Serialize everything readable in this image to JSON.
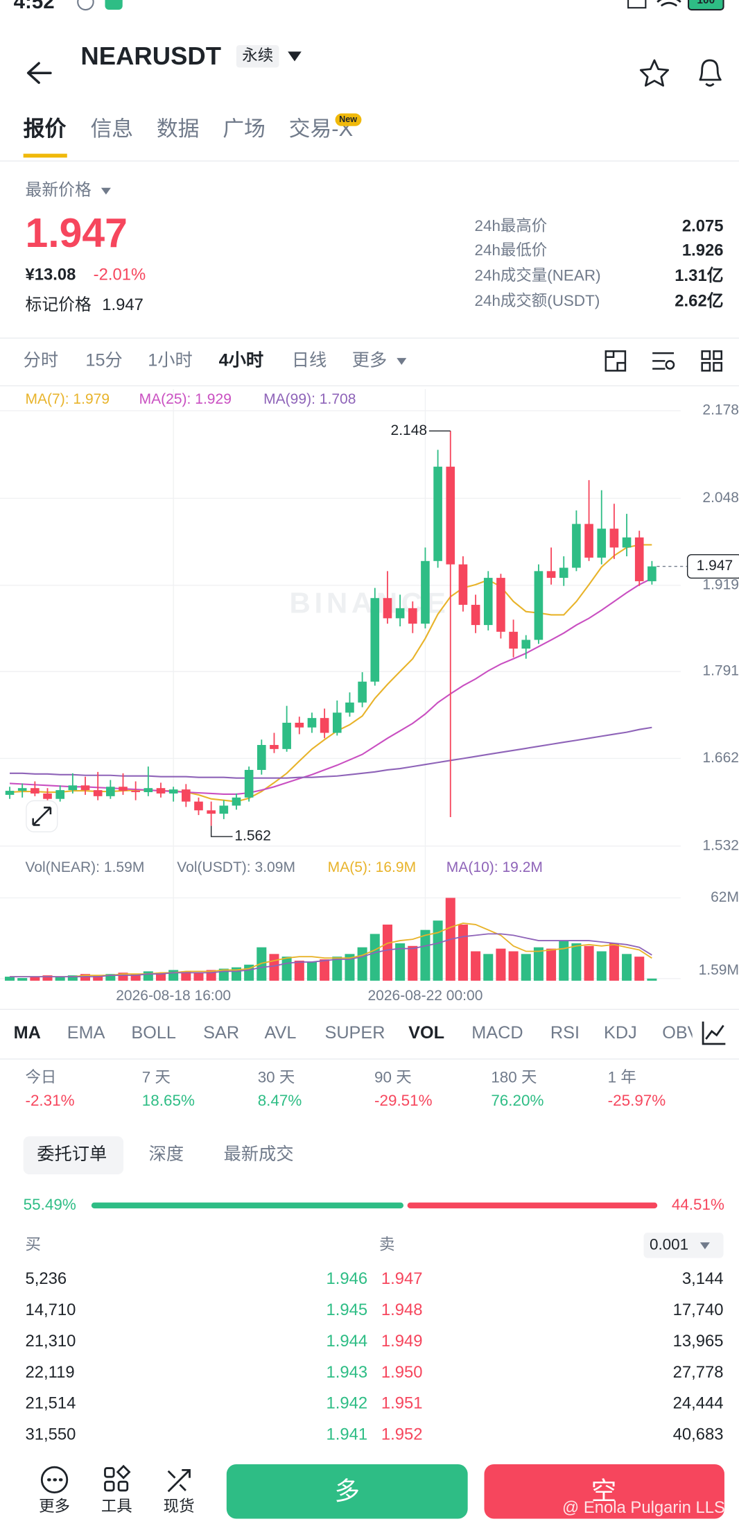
{
  "status_bar": {
    "time": "4:52",
    "battery": "100"
  },
  "header": {
    "symbol": "NEARUSDT",
    "badge": "永续"
  },
  "tabs": [
    "报价",
    "信息",
    "数据",
    "广场",
    "交易-X"
  ],
  "tab_badge": "New",
  "price": {
    "label": "最新价格",
    "last": "1.947",
    "cny": "¥13.08",
    "change": "-2.01%",
    "mark_label": "标记价格",
    "mark": "1.947"
  },
  "stats": [
    {
      "label": "24h最高价",
      "value": "2.075"
    },
    {
      "label": "24h最低价",
      "value": "1.926"
    },
    {
      "label": "24h成交量(NEAR)",
      "value": "1.31亿"
    },
    {
      "label": "24h成交额(USDT)",
      "value": "2.62亿"
    }
  ],
  "intervals": [
    "分时",
    "15分",
    "1小时",
    "4小时",
    "日线",
    "更多"
  ],
  "chart_watermark": "BINANCE",
  "chart_data": [
    {
      "type": "candlestick",
      "up_color": "#2ebd85",
      "down_color": "#f6465d",
      "categories": [
        null,
        null,
        null,
        null,
        null,
        null,
        null,
        null,
        null,
        null,
        null,
        null,
        null,
        "2026-08-18 16:00",
        null,
        null,
        null,
        null,
        null,
        null,
        null,
        null,
        null,
        null,
        null,
        null,
        null,
        null,
        null,
        null,
        null,
        null,
        null,
        "2026-08-22 00:00",
        null,
        null,
        null,
        null,
        null,
        null,
        null,
        null,
        null,
        null,
        null,
        null,
        null,
        null,
        null,
        null,
        null,
        null
      ],
      "candles": {
        "open": [
          1.608,
          1.614,
          1.618,
          1.61,
          1.602,
          1.615,
          1.622,
          1.615,
          1.606,
          1.62,
          1.614,
          1.612,
          1.618,
          1.61,
          1.616,
          1.598,
          1.585,
          1.58,
          1.592,
          1.604,
          1.645,
          1.682,
          1.676,
          1.715,
          1.708,
          1.722,
          1.7,
          1.73,
          1.745,
          1.776,
          1.9,
          1.87,
          1.885,
          1.862,
          1.955,
          2.095,
          1.95,
          1.89,
          1.86,
          1.93,
          1.85,
          1.825,
          1.838,
          1.94,
          1.93,
          1.945,
          2.01,
          1.96,
          2.003,
          1.975,
          1.99,
          1.925
        ],
        "high": [
          1.62,
          1.625,
          1.628,
          1.618,
          1.622,
          1.64,
          1.635,
          1.642,
          1.63,
          1.64,
          1.628,
          1.65,
          1.626,
          1.62,
          1.624,
          1.604,
          1.598,
          1.6,
          1.61,
          1.65,
          1.69,
          1.7,
          1.74,
          1.724,
          1.73,
          1.736,
          1.748,
          1.76,
          1.79,
          1.915,
          1.94,
          1.905,
          1.895,
          1.975,
          2.12,
          2.148,
          1.962,
          1.905,
          1.94,
          1.936,
          1.868,
          1.845,
          1.95,
          1.975,
          1.962,
          2.03,
          2.075,
          2.06,
          2.04,
          2.025,
          2.0,
          1.955
        ],
        "low": [
          1.602,
          1.604,
          1.606,
          1.596,
          1.598,
          1.61,
          1.608,
          1.6,
          1.602,
          1.608,
          1.6,
          1.606,
          1.604,
          1.598,
          1.59,
          1.578,
          1.562,
          1.572,
          1.586,
          1.598,
          1.638,
          1.67,
          1.672,
          1.698,
          1.7,
          1.692,
          1.696,
          1.724,
          1.738,
          1.77,
          1.862,
          1.858,
          1.848,
          1.855,
          1.945,
          1.575,
          1.88,
          1.848,
          1.852,
          1.84,
          1.812,
          1.81,
          1.832,
          1.92,
          1.918,
          1.94,
          1.955,
          1.95,
          1.958,
          1.962,
          1.918,
          1.92
        ],
        "close": [
          1.614,
          1.618,
          1.61,
          1.602,
          1.615,
          1.622,
          1.615,
          1.606,
          1.62,
          1.614,
          1.612,
          1.618,
          1.61,
          1.616,
          1.598,
          1.585,
          1.58,
          1.592,
          1.604,
          1.645,
          1.682,
          1.676,
          1.715,
          1.708,
          1.722,
          1.7,
          1.73,
          1.745,
          1.776,
          1.9,
          1.87,
          1.885,
          1.862,
          1.955,
          2.095,
          1.95,
          1.89,
          1.86,
          1.93,
          1.85,
          1.825,
          1.838,
          1.94,
          1.93,
          1.945,
          2.01,
          1.96,
          2.003,
          1.975,
          1.99,
          1.925,
          1.947
        ]
      },
      "series": [
        {
          "name": "MA(7): 1.979",
          "color": "#e8b32a",
          "values": [
            1.612,
            1.613,
            1.613,
            1.612,
            1.612,
            1.614,
            1.614,
            1.613,
            1.613,
            1.614,
            1.615,
            1.615,
            1.614,
            1.614,
            1.612,
            1.608,
            1.602,
            1.6,
            1.598,
            1.603,
            1.613,
            1.626,
            1.64,
            1.658,
            1.676,
            1.69,
            1.703,
            1.712,
            1.725,
            1.751,
            1.772,
            1.791,
            1.81,
            1.84,
            1.876,
            1.902,
            1.915,
            1.92,
            1.927,
            1.917,
            1.895,
            1.88,
            1.878,
            1.875,
            1.875,
            1.895,
            1.92,
            1.946,
            1.963,
            1.975,
            1.979,
            1.979
          ]
        },
        {
          "name": "MA(25): 1.929",
          "color": "#c94fc1",
          "values": [
            1.625,
            1.624,
            1.623,
            1.622,
            1.621,
            1.62,
            1.62,
            1.619,
            1.618,
            1.617,
            1.616,
            1.615,
            1.614,
            1.613,
            1.612,
            1.611,
            1.61,
            1.609,
            1.609,
            1.611,
            1.615,
            1.62,
            1.626,
            1.632,
            1.638,
            1.645,
            1.652,
            1.66,
            1.668,
            1.68,
            1.692,
            1.703,
            1.714,
            1.728,
            1.745,
            1.758,
            1.77,
            1.78,
            1.792,
            1.802,
            1.81,
            1.818,
            1.828,
            1.838,
            1.848,
            1.86,
            1.87,
            1.882,
            1.895,
            1.908,
            1.92,
            1.929
          ]
        },
        {
          "name": "MA(99): 1.708",
          "color": "#8e63b8",
          "values": [
            1.64,
            1.64,
            1.639,
            1.639,
            1.638,
            1.638,
            1.637,
            1.637,
            1.637,
            1.636,
            1.636,
            1.636,
            1.635,
            1.635,
            1.635,
            1.634,
            1.634,
            1.634,
            1.633,
            1.633,
            1.633,
            1.633,
            1.633,
            1.634,
            1.634,
            1.635,
            1.636,
            1.638,
            1.64,
            1.642,
            1.645,
            1.647,
            1.65,
            1.653,
            1.656,
            1.659,
            1.662,
            1.665,
            1.668,
            1.671,
            1.674,
            1.677,
            1.68,
            1.683,
            1.686,
            1.689,
            1.692,
            1.695,
            1.698,
            1.701,
            1.705,
            1.708
          ]
        }
      ],
      "ylim": [
        1.517,
        2.21
      ],
      "yticks": [
        2.178,
        2.048,
        1.919,
        1.791,
        1.662,
        1.532
      ],
      "grid": true
    },
    {
      "type": "bar",
      "legend": [
        "Vol(NEAR): 1.59M",
        "Vol(USDT): 3.09M"
      ],
      "values": [
        3,
        2,
        3,
        4,
        3,
        4,
        5,
        4,
        5,
        6,
        5,
        7,
        6,
        8,
        7,
        6,
        8,
        9,
        10,
        12,
        25,
        20,
        18,
        15,
        14,
        16,
        18,
        20,
        25,
        35,
        42,
        28,
        26,
        38,
        45,
        62,
        42,
        22,
        20,
        24,
        22,
        20,
        25,
        24,
        30,
        28,
        26,
        22,
        28,
        20,
        18,
        1.59
      ],
      "series": [
        {
          "name": "MA(5): 16.9M",
          "color": "#e8b32a",
          "values": [
            3,
            3,
            3,
            3,
            3,
            3,
            4,
            4,
            4,
            5,
            5,
            5,
            6,
            6,
            7,
            7,
            7,
            8,
            8,
            9,
            13,
            15,
            17,
            18,
            18,
            17,
            17,
            17,
            19,
            23,
            28,
            30,
            31,
            34,
            36,
            40,
            43,
            42,
            38,
            34,
            26,
            22,
            22,
            23,
            24,
            26,
            27,
            26,
            27,
            25,
            23,
            16.9
          ]
        },
        {
          "name": "MA(10): 19.2M",
          "color": "#8e63b8",
          "values": [
            3,
            3,
            3,
            3,
            3,
            3,
            3,
            3,
            4,
            4,
            4,
            5,
            5,
            6,
            6,
            6,
            6,
            7,
            7,
            8,
            10,
            11,
            13,
            14,
            14,
            15,
            16,
            16,
            18,
            21,
            23,
            24,
            24,
            26,
            28,
            31,
            33,
            34,
            35,
            35,
            34,
            32,
            30,
            30,
            30,
            30,
            30,
            29,
            28,
            27,
            25,
            19.2
          ]
        }
      ],
      "ylim": [
        0,
        75
      ],
      "yticks": [
        {
          "value": 62,
          "label": "62M"
        },
        {
          "value": 1.59,
          "label": "1.59M"
        }
      ]
    }
  ],
  "indicators": [
    "MA",
    "EMA",
    "BOLL",
    "SAR",
    "AVL",
    "SUPER",
    "VOL",
    "MACD",
    "RSI",
    "KDJ",
    "OBV"
  ],
  "performance": [
    {
      "label": "今日",
      "value": "-2.31%"
    },
    {
      "label": "7 天",
      "value": "18.65%"
    },
    {
      "label": "30 天",
      "value": "8.47%"
    },
    {
      "label": "90 天",
      "value": "-29.51%"
    },
    {
      "label": "180 天",
      "value": "76.20%"
    },
    {
      "label": "1 年",
      "value": "-25.97%"
    }
  ],
  "order_tabs": [
    "委托订单",
    "深度",
    "最新成交"
  ],
  "ratio": {
    "buy": {
      "value": 55.49,
      "label": "55.49%"
    },
    "sell": {
      "value": 44.51,
      "label": "44.51%"
    }
  },
  "order_book": {
    "bid_label": "买",
    "ask_label": "卖",
    "precision": "0.001",
    "rows": [
      {
        "bid_qty": "5,236",
        "bid_price": "1.946",
        "ask_price": "1.947",
        "ask_qty": "3,144"
      },
      {
        "bid_qty": "14,710",
        "bid_price": "1.945",
        "ask_price": "1.948",
        "ask_qty": "17,740"
      },
      {
        "bid_qty": "21,310",
        "bid_price": "1.944",
        "ask_price": "1.949",
        "ask_qty": "13,965"
      },
      {
        "bid_qty": "22,119",
        "bid_price": "1.943",
        "ask_price": "1.950",
        "ask_qty": "27,778"
      },
      {
        "bid_qty": "21,514",
        "bid_price": "1.942",
        "ask_price": "1.951",
        "ask_qty": "24,444"
      },
      {
        "bid_qty": "31,550",
        "bid_price": "1.941",
        "ask_price": "1.952",
        "ask_qty": "40,683"
      }
    ]
  },
  "bottom_bar": {
    "more": "更多",
    "tools": "工具",
    "spot": "现货",
    "long": "多",
    "short": "空"
  },
  "watermark": "@ Enola Pulgarin LLSC"
}
